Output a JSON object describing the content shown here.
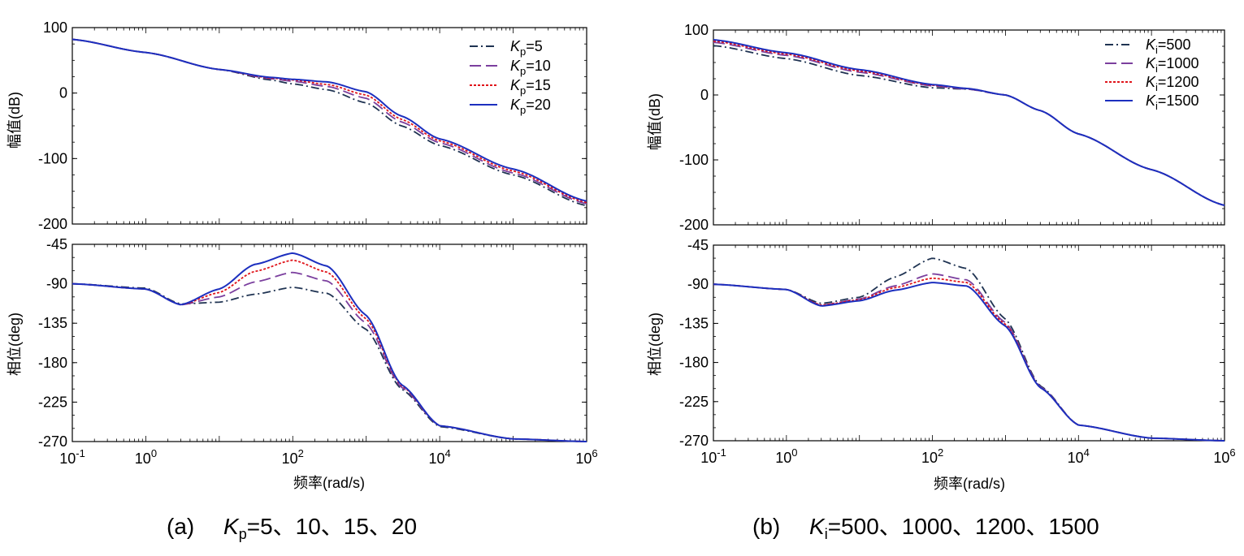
{
  "figure": {
    "caption_a": {
      "label": "(a)",
      "var": "K",
      "sub": "p",
      "values": "=5、10、15、20"
    },
    "caption_b": {
      "label": "(b)",
      "var": "K",
      "sub": "i",
      "values": "=500、1000、1200、1500"
    }
  },
  "colors": {
    "series1": "#1f3352",
    "series2": "#7b3f9e",
    "series3": "#e0151b",
    "series4": "#1c2fbf"
  },
  "chart_data": [
    {
      "type": "line",
      "panel": "a-magnitude",
      "xscale": "log",
      "xlim": [
        0.1,
        1000000
      ],
      "ylabel": "幅值(dB)",
      "ylim": [
        -200,
        100
      ],
      "yticks": [
        "100",
        "0",
        "-100",
        "-200"
      ],
      "legend": "top-right",
      "series": [
        {
          "name": "Kp=5",
          "var": "K",
          "sub": "p",
          "val": "=5",
          "dash": "dashdot",
          "x": [
            0.1,
            1,
            10,
            50,
            100,
            300,
            1000,
            3000,
            10000,
            100000,
            1000000
          ],
          "y": [
            82,
            62,
            36,
            20,
            14,
            5,
            -15,
            -50,
            -80,
            -125,
            -172
          ]
        },
        {
          "name": "Kp=10",
          "var": "K",
          "sub": "p",
          "val": "=10",
          "dash": "longdash",
          "x": [
            0.1,
            1,
            10,
            50,
            100,
            300,
            1000,
            3000,
            10000,
            100000,
            1000000
          ],
          "y": [
            82,
            62,
            36,
            22,
            18,
            10,
            -8,
            -44,
            -76,
            -122,
            -169
          ]
        },
        {
          "name": "Kp=15",
          "var": "K",
          "sub": "p",
          "val": "=15",
          "dash": "dotted",
          "x": [
            0.1,
            1,
            10,
            50,
            100,
            300,
            1000,
            3000,
            10000,
            100000,
            1000000
          ],
          "y": [
            82,
            62,
            36,
            23,
            20,
            13,
            -3,
            -40,
            -73,
            -119,
            -167
          ]
        },
        {
          "name": "Kp=20",
          "var": "K",
          "sub": "p",
          "val": "=20",
          "dash": "solid",
          "x": [
            0.1,
            1,
            10,
            50,
            100,
            300,
            1000,
            3000,
            10000,
            100000,
            1000000
          ],
          "y": [
            82,
            62,
            36,
            24,
            21,
            17,
            2,
            -35,
            -70,
            -116,
            -165
          ]
        }
      ]
    },
    {
      "type": "line",
      "panel": "a-phase",
      "xscale": "log",
      "xlim": [
        0.1,
        1000000
      ],
      "ylabel": "相位(deg)",
      "xlabel": "频率(rad/s)",
      "ylim": [
        -270,
        -45
      ],
      "yticks": [
        "-45",
        "-90",
        "-135",
        "-180",
        "-225",
        "-270"
      ],
      "xticks": [
        {
          "base": "10",
          "exp": "-1"
        },
        {
          "base": "10",
          "exp": "0"
        },
        {
          "base": "10",
          "exp": "2"
        },
        {
          "base": "10",
          "exp": "4"
        },
        {
          "base": "10",
          "exp": "6"
        }
      ],
      "series": [
        {
          "name": "Kp=5",
          "x": [
            0.1,
            1,
            3,
            10,
            30,
            100,
            300,
            1000,
            3000,
            10000,
            100000,
            1000000
          ],
          "y": [
            -90,
            -95,
            -113,
            -111,
            -102,
            -94,
            -101,
            -142,
            -210,
            -253,
            -267,
            -270
          ]
        },
        {
          "name": "Kp=10",
          "x": [
            0.1,
            1,
            3,
            10,
            30,
            100,
            300,
            1000,
            3000,
            10000,
            100000,
            1000000
          ],
          "y": [
            -90,
            -96,
            -114,
            -105,
            -88,
            -77,
            -87,
            -135,
            -208,
            -252,
            -267,
            -270
          ]
        },
        {
          "name": "Kp=15",
          "x": [
            0.1,
            1,
            3,
            10,
            30,
            100,
            300,
            1000,
            3000,
            10000,
            100000,
            1000000
          ],
          "y": [
            -90,
            -96,
            -114,
            -100,
            -76,
            -63,
            -77,
            -130,
            -206,
            -252,
            -267,
            -270
          ]
        },
        {
          "name": "Kp=20",
          "x": [
            0.1,
            1,
            3,
            10,
            30,
            100,
            300,
            1000,
            3000,
            10000,
            100000,
            1000000
          ],
          "y": [
            -90,
            -96,
            -114,
            -96,
            -68,
            -55,
            -70,
            -126,
            -205,
            -252,
            -267,
            -270
          ]
        }
      ]
    },
    {
      "type": "line",
      "panel": "b-magnitude",
      "xscale": "log",
      "xlim": [
        0.1,
        1000000
      ],
      "ylabel": "幅值(dB)",
      "ylim": [
        -200,
        100
      ],
      "yticks": [
        "100",
        "0",
        "-100",
        "-200"
      ],
      "legend": "top-right",
      "series": [
        {
          "name": "Ki=500",
          "var": "K",
          "sub": "i",
          "val": "=500",
          "dash": "dashdot",
          "x": [
            0.1,
            1,
            10,
            100,
            300,
            1000,
            3000,
            10000,
            100000,
            1000000
          ],
          "y": [
            76,
            56,
            30,
            11,
            9,
            0,
            -24,
            -60,
            -115,
            -170
          ]
        },
        {
          "name": "Ki=1000",
          "var": "K",
          "sub": "i",
          "val": "=1000",
          "dash": "longdash",
          "x": [
            0.1,
            1,
            10,
            100,
            300,
            1000,
            3000,
            10000,
            100000,
            1000000
          ],
          "y": [
            81,
            61,
            35,
            14,
            9,
            0,
            -24,
            -60,
            -115,
            -170
          ]
        },
        {
          "name": "Ki=1200",
          "var": "K",
          "sub": "i",
          "val": "=1200",
          "dash": "dotted",
          "x": [
            0.1,
            1,
            10,
            100,
            300,
            1000,
            3000,
            10000,
            100000,
            1000000
          ],
          "y": [
            83,
            63,
            37,
            15,
            10,
            0,
            -24,
            -60,
            -115,
            -170
          ]
        },
        {
          "name": "Ki=1500",
          "var": "K",
          "sub": "i",
          "val": "=1500",
          "dash": "solid",
          "x": [
            0.1,
            1,
            10,
            100,
            300,
            1000,
            3000,
            10000,
            100000,
            1000000
          ],
          "y": [
            85,
            65,
            39,
            16,
            10,
            0,
            -24,
            -60,
            -115,
            -170
          ]
        }
      ]
    },
    {
      "type": "line",
      "panel": "b-phase",
      "xscale": "log",
      "xlim": [
        0.1,
        1000000
      ],
      "ylabel": "相位(deg)",
      "xlabel": "频率(rad/s)",
      "ylim": [
        -270,
        -45
      ],
      "yticks": [
        "-45",
        "-90",
        "-135",
        "-180",
        "-225",
        "-270"
      ],
      "xticks": [
        {
          "base": "10",
          "exp": "-1"
        },
        {
          "base": "10",
          "exp": "0"
        },
        {
          "base": "10",
          "exp": "2"
        },
        {
          "base": "10",
          "exp": "4"
        },
        {
          "base": "10",
          "exp": "6"
        }
      ],
      "series": [
        {
          "name": "Ki=500",
          "x": [
            0.1,
            1,
            3,
            10,
            30,
            100,
            300,
            1000,
            3000,
            10000,
            100000,
            1000000
          ],
          "y": [
            -90,
            -96,
            -112,
            -105,
            -82,
            -60,
            -72,
            -130,
            -207,
            -252,
            -267,
            -270
          ]
        },
        {
          "name": "Ki=1000",
          "x": [
            0.1,
            1,
            3,
            10,
            30,
            100,
            300,
            1000,
            3000,
            10000,
            100000,
            1000000
          ],
          "y": [
            -90,
            -96,
            -114,
            -107,
            -92,
            -78,
            -85,
            -134,
            -208,
            -252,
            -267,
            -270
          ]
        },
        {
          "name": "Ki=1200",
          "x": [
            0.1,
            1,
            3,
            10,
            30,
            100,
            300,
            1000,
            3000,
            10000,
            100000,
            1000000
          ],
          "y": [
            -90,
            -96,
            -114,
            -108,
            -94,
            -83,
            -88,
            -136,
            -209,
            -252,
            -267,
            -270
          ]
        },
        {
          "name": "Ki=1500",
          "x": [
            0.1,
            1,
            3,
            10,
            30,
            100,
            300,
            1000,
            3000,
            10000,
            100000,
            1000000
          ],
          "y": [
            -90,
            -96,
            -115,
            -109,
            -97,
            -88,
            -92,
            -138,
            -209,
            -252,
            -267,
            -270
          ]
        }
      ]
    }
  ]
}
